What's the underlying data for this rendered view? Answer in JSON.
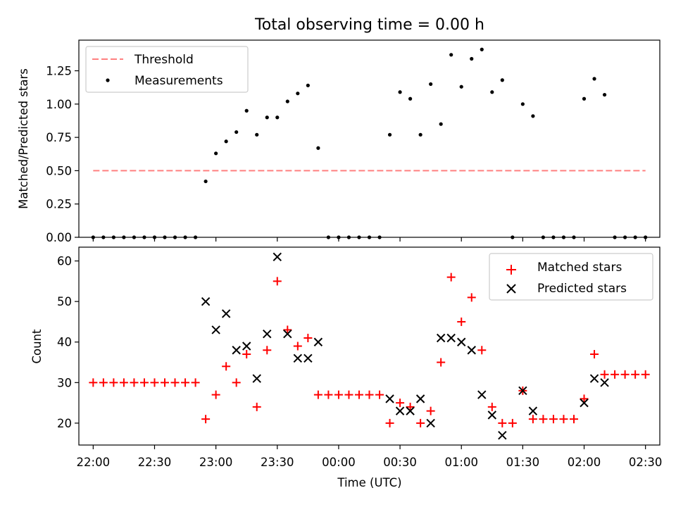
{
  "title": "Total observing time = 0.00 h",
  "chart_data": [
    {
      "type": "scatter",
      "ylabel": "Matched/Predicted stars",
      "ylim": [
        0,
        1.48
      ],
      "yticks": [
        0.0,
        0.25,
        0.5,
        0.75,
        1.0,
        1.25
      ],
      "ytick_labels": [
        "0.00",
        "0.25",
        "0.50",
        "0.75",
        "1.00",
        "1.25"
      ],
      "legend_position": "top-left",
      "threshold": {
        "name": "Threshold",
        "value": 0.5,
        "x_range": [
          "22:00",
          "02:30"
        ],
        "color": "#ff8080",
        "style": "dashed"
      },
      "series": [
        {
          "name": "Measurements",
          "color": "#000000",
          "marker": "dot",
          "points": [
            [
              "22:00",
              0
            ],
            [
              "22:05",
              0
            ],
            [
              "22:10",
              0
            ],
            [
              "22:15",
              0
            ],
            [
              "22:20",
              0
            ],
            [
              "22:25",
              0
            ],
            [
              "22:30",
              0
            ],
            [
              "22:35",
              0
            ],
            [
              "22:40",
              0
            ],
            [
              "22:45",
              0
            ],
            [
              "22:50",
              0
            ],
            [
              "22:55",
              0.42
            ],
            [
              "23:00",
              0.63
            ],
            [
              "23:05",
              0.72
            ],
            [
              "23:10",
              0.79
            ],
            [
              "23:15",
              0.95
            ],
            [
              "23:20",
              0.77
            ],
            [
              "23:25",
              0.9
            ],
            [
              "23:30",
              0.9
            ],
            [
              "23:35",
              1.02
            ],
            [
              "23:40",
              1.08
            ],
            [
              "23:45",
              1.14
            ],
            [
              "23:50",
              0.67
            ],
            [
              "23:55",
              0
            ],
            [
              "00:00",
              0
            ],
            [
              "00:05",
              0
            ],
            [
              "00:10",
              0
            ],
            [
              "00:15",
              0
            ],
            [
              "00:20",
              0
            ],
            [
              "00:25",
              0.77
            ],
            [
              "00:30",
              1.09
            ],
            [
              "00:35",
              1.04
            ],
            [
              "00:40",
              0.77
            ],
            [
              "00:45",
              1.15
            ],
            [
              "00:50",
              0.85
            ],
            [
              "00:55",
              1.37
            ],
            [
              "01:00",
              1.13
            ],
            [
              "01:05",
              1.34
            ],
            [
              "01:10",
              1.41
            ],
            [
              "01:15",
              1.09
            ],
            [
              "01:20",
              1.18
            ],
            [
              "01:25",
              0
            ],
            [
              "01:30",
              1.0
            ],
            [
              "01:35",
              0.91
            ],
            [
              "01:40",
              0
            ],
            [
              "01:45",
              0
            ],
            [
              "01:50",
              0
            ],
            [
              "01:55",
              0
            ],
            [
              "02:00",
              1.04
            ],
            [
              "02:05",
              1.19
            ],
            [
              "02:10",
              1.07
            ],
            [
              "02:15",
              0
            ],
            [
              "02:20",
              0
            ],
            [
              "02:25",
              0
            ],
            [
              "02:30",
              0
            ]
          ]
        }
      ]
    },
    {
      "type": "scatter",
      "xlabel": "Time (UTC)",
      "ylabel": "Count",
      "ylim": [
        14.6,
        63.4
      ],
      "yticks": [
        20,
        30,
        40,
        50,
        60
      ],
      "ytick_labels": [
        "20",
        "30",
        "40",
        "50",
        "60"
      ],
      "xlim": [
        "21:53",
        "02:37"
      ],
      "xticks": [
        "22:00",
        "22:30",
        "23:00",
        "23:30",
        "00:00",
        "00:30",
        "01:00",
        "01:30",
        "02:00",
        "02:30"
      ],
      "legend_position": "top-right",
      "series": [
        {
          "name": "Matched stars",
          "color": "#ff0000",
          "marker": "plus",
          "points": [
            [
              "22:00",
              30
            ],
            [
              "22:05",
              30
            ],
            [
              "22:10",
              30
            ],
            [
              "22:15",
              30
            ],
            [
              "22:20",
              30
            ],
            [
              "22:25",
              30
            ],
            [
              "22:30",
              30
            ],
            [
              "22:35",
              30
            ],
            [
              "22:40",
              30
            ],
            [
              "22:45",
              30
            ],
            [
              "22:50",
              30
            ],
            [
              "22:55",
              21
            ],
            [
              "23:00",
              27
            ],
            [
              "23:05",
              34
            ],
            [
              "23:10",
              30
            ],
            [
              "23:15",
              37
            ],
            [
              "23:20",
              24
            ],
            [
              "23:25",
              38
            ],
            [
              "23:30",
              55
            ],
            [
              "23:35",
              43
            ],
            [
              "23:40",
              39
            ],
            [
              "23:45",
              41
            ],
            [
              "23:50",
              27
            ],
            [
              "23:55",
              27
            ],
            [
              "00:00",
              27
            ],
            [
              "00:05",
              27
            ],
            [
              "00:10",
              27
            ],
            [
              "00:15",
              27
            ],
            [
              "00:20",
              27
            ],
            [
              "00:25",
              20
            ],
            [
              "00:30",
              25
            ],
            [
              "00:35",
              24
            ],
            [
              "00:40",
              20
            ],
            [
              "00:45",
              23
            ],
            [
              "00:50",
              35
            ],
            [
              "00:55",
              56
            ],
            [
              "01:00",
              45
            ],
            [
              "01:05",
              51
            ],
            [
              "01:10",
              38
            ],
            [
              "01:15",
              24
            ],
            [
              "01:20",
              20
            ],
            [
              "01:25",
              20
            ],
            [
              "01:30",
              28
            ],
            [
              "01:35",
              21
            ],
            [
              "01:40",
              21
            ],
            [
              "01:45",
              21
            ],
            [
              "01:50",
              21
            ],
            [
              "01:55",
              21
            ],
            [
              "02:00",
              26
            ],
            [
              "02:05",
              37
            ],
            [
              "02:10",
              32
            ],
            [
              "02:15",
              32
            ],
            [
              "02:20",
              32
            ],
            [
              "02:25",
              32
            ],
            [
              "02:30",
              32
            ]
          ]
        },
        {
          "name": "Predicted stars",
          "color": "#000000",
          "marker": "x",
          "points": [
            [
              "22:55",
              50
            ],
            [
              "23:00",
              43
            ],
            [
              "23:05",
              47
            ],
            [
              "23:10",
              38
            ],
            [
              "23:15",
              39
            ],
            [
              "23:20",
              31
            ],
            [
              "23:25",
              42
            ],
            [
              "23:30",
              61
            ],
            [
              "23:35",
              42
            ],
            [
              "23:40",
              36
            ],
            [
              "23:45",
              36
            ],
            [
              "23:50",
              40
            ],
            [
              "00:25",
              26
            ],
            [
              "00:30",
              23
            ],
            [
              "00:35",
              23
            ],
            [
              "00:40",
              26
            ],
            [
              "00:45",
              20
            ],
            [
              "00:50",
              41
            ],
            [
              "00:55",
              41
            ],
            [
              "01:00",
              40
            ],
            [
              "01:05",
              38
            ],
            [
              "01:10",
              27
            ],
            [
              "01:15",
              22
            ],
            [
              "01:20",
              17
            ],
            [
              "01:30",
              28
            ],
            [
              "01:35",
              23
            ],
            [
              "02:00",
              25
            ],
            [
              "02:05",
              31
            ],
            [
              "02:10",
              30
            ]
          ]
        }
      ]
    }
  ]
}
